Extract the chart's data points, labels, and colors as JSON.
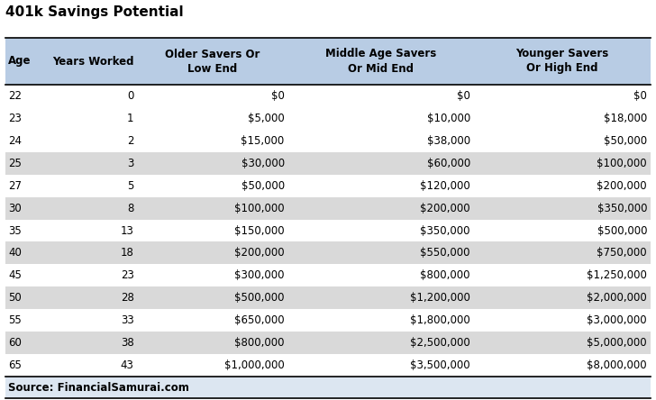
{
  "title": "401k Savings Potential",
  "source": "Source: FinancialSamurai.com",
  "col_headers": [
    "Age",
    "Years Worked",
    "Older Savers Or\nLow End",
    "Middle Age Savers\nOr Mid End",
    "Younger Savers\nOr High End"
  ],
  "rows": [
    [
      "22",
      "0",
      "$0",
      "$0",
      "$0"
    ],
    [
      "23",
      "1",
      "$5,000",
      "$10,000",
      "$18,000"
    ],
    [
      "24",
      "2",
      "$15,000",
      "$38,000",
      "$50,000"
    ],
    [
      "25",
      "3",
      "$30,000",
      "$60,000",
      "$100,000"
    ],
    [
      "27",
      "5",
      "$50,000",
      "$120,000",
      "$200,000"
    ],
    [
      "30",
      "8",
      "$100,000",
      "$200,000",
      "$350,000"
    ],
    [
      "35",
      "13",
      "$150,000",
      "$350,000",
      "$500,000"
    ],
    [
      "40",
      "18",
      "$200,000",
      "$550,000",
      "$750,000"
    ],
    [
      "45",
      "23",
      "$300,000",
      "$800,000",
      "$1,250,000"
    ],
    [
      "50",
      "28",
      "$500,000",
      "$1,200,000",
      "$2,000,000"
    ],
    [
      "55",
      "33",
      "$650,000",
      "$1,800,000",
      "$3,000,000"
    ],
    [
      "60",
      "38",
      "$800,000",
      "$2,500,000",
      "$5,000,000"
    ],
    [
      "65",
      "43",
      "$1,000,000",
      "$3,500,000",
      "$8,000,000"
    ]
  ],
  "header_bg": "#b8cce4",
  "alt_row_bg": "#d9d9d9",
  "white_row_bg": "#ffffff",
  "source_bg": "#dce6f1",
  "gray_ages": [
    "25",
    "30",
    "40",
    "50",
    "60"
  ],
  "header_fontsize": 8.5,
  "cell_fontsize": 8.5,
  "title_fontsize": 11,
  "source_fontsize": 8.5
}
